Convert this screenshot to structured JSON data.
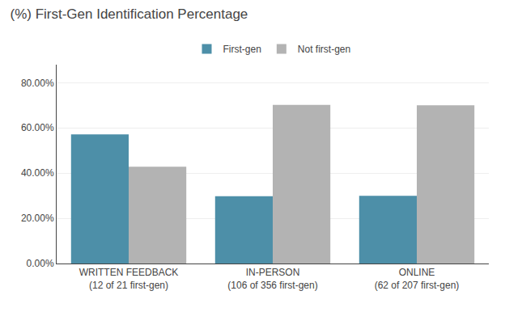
{
  "chart_data": {
    "type": "bar",
    "title": "(%) First-Gen Identification Percentage",
    "categories": [
      "WRITTEN FEEDBACK\n(12 of 21 first-gen)",
      "IN-PERSON\n(106 of 356 first-gen)",
      "ONLINE\n(62 of 207 first-gen)"
    ],
    "series": [
      {
        "name": "First-gen",
        "color": "#4d8fa8",
        "values": [
          0.5714,
          0.2978,
          0.2995
        ]
      },
      {
        "name": "Not first-gen",
        "color": "#b3b3b3",
        "values": [
          0.4286,
          0.7022,
          0.7005
        ]
      }
    ],
    "ylim": [
      0,
      0.88
    ],
    "yticks": [
      {
        "value": 0.0,
        "label": "0.00%"
      },
      {
        "value": 0.2,
        "label": "20.00%"
      },
      {
        "value": 0.4,
        "label": "40.00%"
      },
      {
        "value": 0.6,
        "label": "60.00%"
      },
      {
        "value": 0.8,
        "label": "80.00%"
      }
    ],
    "grid": true,
    "legend": "top"
  }
}
